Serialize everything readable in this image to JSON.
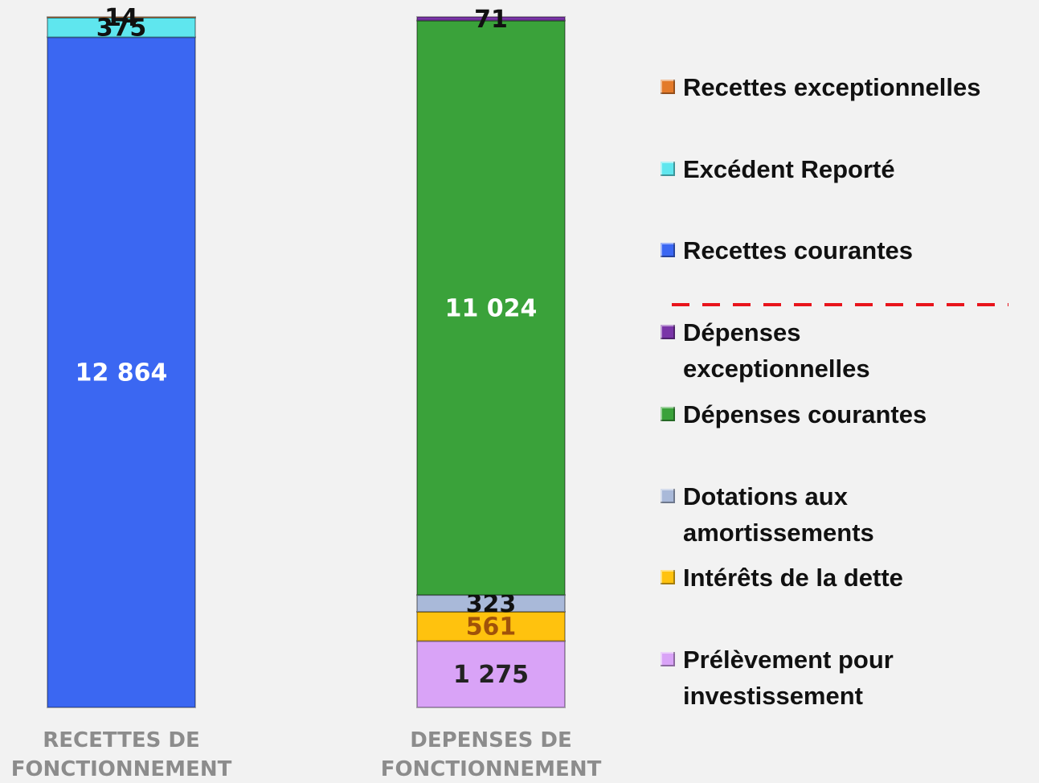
{
  "chart_data": {
    "type": "stacked_bar",
    "categories": [
      "RECETTES DE FONCTIONNEMENT",
      "DEPENSES DE FONCTIONNEMENT"
    ],
    "series": [
      {
        "name": "Prélèvement pour investissement",
        "color": "#d9a3f7",
        "label_color": "#222222",
        "values": [
          null,
          1275
        ],
        "value_labels": [
          null,
          "1 275"
        ]
      },
      {
        "name": "Intérêts de la dette",
        "color": "#ffc20e",
        "label_color": "#a0520a",
        "values": [
          null,
          561
        ]
      },
      {
        "name": "Dotations aux amortissements",
        "color": "#a9b9d9",
        "label_color": "#111111",
        "values": [
          null,
          323
        ]
      },
      {
        "name": "Dépenses courantes",
        "color": "#3aa23a",
        "label_color": "#ffffff",
        "values": [
          null,
          11024
        ],
        "value_labels": [
          null,
          "11 024"
        ]
      },
      {
        "name": "Dépenses exceptionnelles",
        "color": "#7a35a8",
        "label_color": "#111111",
        "values": [
          null,
          71
        ]
      },
      {
        "name": "Recettes courantes",
        "color": "#3b67f2",
        "label_color": "#ffffff",
        "values": [
          12864,
          null
        ],
        "value_labels": [
          "12 864",
          null
        ]
      },
      {
        "name": "Excédent Reporté",
        "color": "#5fe6ee",
        "label_color": "#111111",
        "values": [
          375,
          null
        ]
      },
      {
        "name": "Recettes exceptionnelles",
        "color": "#e37a2a",
        "label_color": "#111111",
        "values": [
          14,
          null
        ]
      }
    ]
  }
}
